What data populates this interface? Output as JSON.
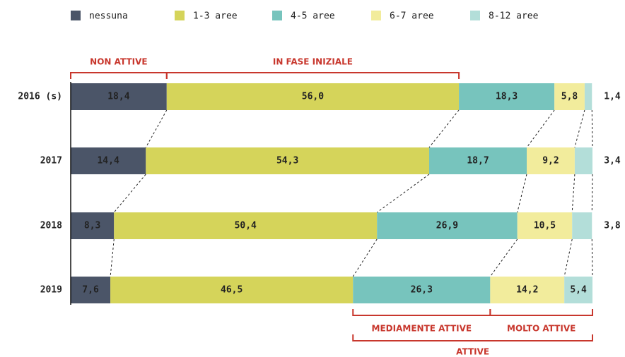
{
  "chart_data": {
    "type": "stacked_barh",
    "categories": [
      "2016 (s)",
      "2017",
      "2018",
      "2019"
    ],
    "series": [
      {
        "name": "nessuna",
        "color": "#4b5568",
        "values": [
          18.4,
          14.4,
          8.3,
          7.6
        ],
        "value_labels": [
          "18,4",
          "14,4",
          "8,3",
          "7,6"
        ]
      },
      {
        "name": "1-3 aree",
        "color": "#d5d45a",
        "values": [
          56.0,
          54.3,
          50.4,
          46.5
        ],
        "value_labels": [
          "56,0",
          "54,3",
          "50,4",
          "46,5"
        ]
      },
      {
        "name": "4-5 aree",
        "color": "#77c4bd",
        "values": [
          18.3,
          18.7,
          26.9,
          26.3
        ],
        "value_labels": [
          "18,3",
          "18,7",
          "26,9",
          "26,3"
        ]
      },
      {
        "name": "6-7 aree",
        "color": "#f2ec9c",
        "values": [
          5.8,
          9.2,
          10.5,
          14.2
        ],
        "value_labels": [
          "5,8",
          "9,2",
          "10,5",
          "14,2"
        ]
      },
      {
        "name": "8-12 aree",
        "color": "#b3ded9",
        "values": [
          1.4,
          3.4,
          3.8,
          5.4
        ],
        "value_labels": [
          "1,4",
          "3,4",
          "3,8",
          "5,4"
        ]
      }
    ],
    "annotations": [
      "NON ATTIVE",
      "IN FASE INIZIALE",
      "MEDIAMENTE ATTIVE",
      "MOLTO ATTIVE",
      "ATTIVE"
    ]
  }
}
